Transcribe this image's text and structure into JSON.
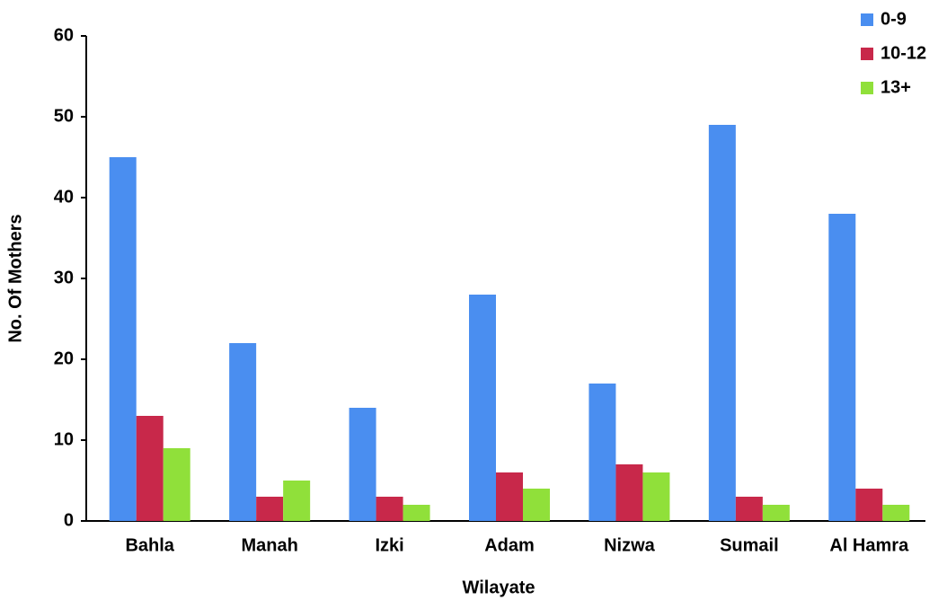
{
  "chart_data": {
    "type": "bar",
    "x_label": "Wilayate",
    "y_label": "No. Of Mothers",
    "categories": [
      "Bahla",
      "Manah",
      "Izki",
      "Adam",
      "Nizwa",
      "Sumail",
      "Al Hamra"
    ],
    "series": [
      {
        "name": "0-9",
        "color": "#4a8ef0",
        "values": [
          45,
          22,
          14,
          28,
          17,
          49,
          38
        ]
      },
      {
        "name": "10-12",
        "color": "#c8284a",
        "values": [
          13,
          3,
          3,
          6,
          7,
          3,
          4
        ]
      },
      {
        "name": "13+",
        "color": "#90e03a",
        "values": [
          9,
          5,
          2,
          4,
          6,
          2,
          2
        ]
      }
    ],
    "ylim": [
      0,
      60
    ],
    "yticks": [
      0,
      10,
      20,
      30,
      40,
      50,
      60
    ],
    "grid": false,
    "legend": "top-right"
  }
}
